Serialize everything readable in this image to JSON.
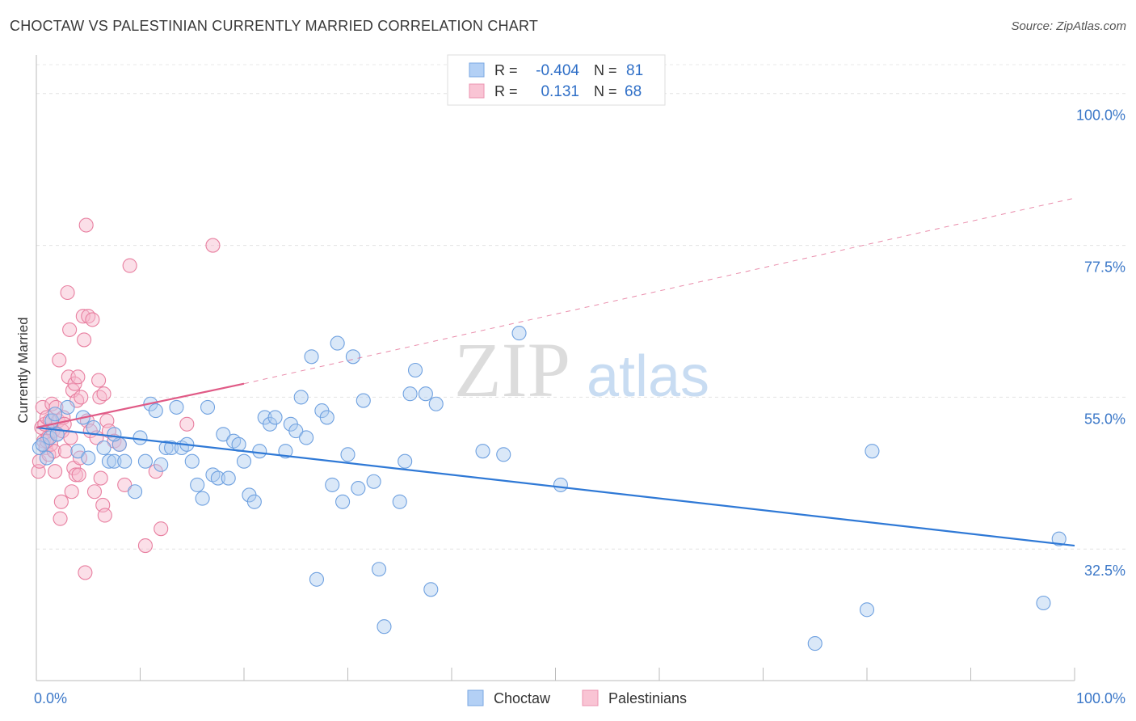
{
  "chart_data": {
    "type": "scatter",
    "title": "CHOCTAW VS PALESTINIAN CURRENTLY MARRIED CORRELATION CHART",
    "source": "Source: ZipAtlas.com",
    "watermark": {
      "zip": "ZIP",
      "atlas": "atlas"
    },
    "xlabel": "",
    "ylabel": "Currently Married",
    "xlim": [
      0,
      100
    ],
    "ylim": [
      13,
      105
    ],
    "x_tick_labels": [
      "0.0%",
      "100.0%"
    ],
    "y_ticks": [
      {
        "value": 32.5,
        "label": "32.5%"
      },
      {
        "value": 55.0,
        "label": "55.0%"
      },
      {
        "value": 77.5,
        "label": "77.5%"
      },
      {
        "value": 100.0,
        "label": "100.0%"
      }
    ],
    "legend_stats": [
      {
        "r_label": "R =",
        "r_value": "-0.404",
        "n_label": "N =",
        "n_value": "81"
      },
      {
        "r_label": "R =",
        "r_value": "0.131",
        "n_label": "N =",
        "n_value": "68"
      }
    ],
    "series": [
      {
        "name": "Choctaw",
        "color": "#6fa1e0",
        "fill": "#aecbf0",
        "trend": {
          "x0": 0,
          "y0": 50.5,
          "x1": 100,
          "y1": 33.0,
          "color": "#2f79d6"
        },
        "points": [
          [
            0.3,
            47.5
          ],
          [
            0.6,
            48.0
          ],
          [
            1.0,
            46.0
          ],
          [
            1.3,
            49.0
          ],
          [
            1.5,
            51.5
          ],
          [
            2.0,
            49.5
          ],
          [
            3.0,
            53.5
          ],
          [
            4.0,
            47.0
          ],
          [
            4.5,
            52.0
          ],
          [
            5.0,
            46.0
          ],
          [
            5.5,
            50.5
          ],
          [
            6.5,
            47.5
          ],
          [
            7.0,
            45.5
          ],
          [
            7.5,
            45.5
          ],
          [
            8.0,
            48.0
          ],
          [
            8.5,
            45.5
          ],
          [
            9.5,
            41.0
          ],
          [
            10.0,
            49.0
          ],
          [
            10.5,
            45.5
          ],
          [
            11.0,
            54.0
          ],
          [
            11.5,
            53.0
          ],
          [
            12.0,
            45.0
          ],
          [
            12.5,
            47.5
          ],
          [
            13.0,
            47.5
          ],
          [
            13.5,
            53.5
          ],
          [
            14.0,
            47.5
          ],
          [
            14.5,
            48.0
          ],
          [
            15.0,
            45.5
          ],
          [
            15.5,
            42.0
          ],
          [
            16.0,
            40.0
          ],
          [
            16.5,
            53.5
          ],
          [
            17.0,
            43.5
          ],
          [
            17.5,
            43.0
          ],
          [
            18.0,
            49.5
          ],
          [
            18.5,
            43.0
          ],
          [
            19.0,
            48.5
          ],
          [
            19.5,
            48.0
          ],
          [
            20.0,
            45.5
          ],
          [
            20.5,
            40.5
          ],
          [
            21.0,
            39.5
          ],
          [
            21.5,
            47.0
          ],
          [
            22.0,
            52.0
          ],
          [
            22.5,
            51.0
          ],
          [
            23.0,
            52.0
          ],
          [
            24.0,
            47.0
          ],
          [
            24.5,
            51.0
          ],
          [
            25.0,
            50.0
          ],
          [
            25.5,
            55.0
          ],
          [
            26.0,
            49.0
          ],
          [
            26.5,
            61.0
          ],
          [
            27.0,
            28.0
          ],
          [
            27.5,
            53.0
          ],
          [
            28.0,
            52.0
          ],
          [
            28.5,
            42.0
          ],
          [
            29.0,
            63.0
          ],
          [
            29.5,
            39.5
          ],
          [
            30.0,
            46.5
          ],
          [
            30.5,
            61.0
          ],
          [
            31.0,
            41.5
          ],
          [
            31.5,
            54.5
          ],
          [
            32.5,
            42.5
          ],
          [
            33.0,
            29.5
          ],
          [
            33.5,
            21.0
          ],
          [
            35.0,
            39.5
          ],
          [
            35.5,
            45.5
          ],
          [
            36.0,
            55.5
          ],
          [
            36.5,
            59.0
          ],
          [
            37.5,
            55.5
          ],
          [
            38.0,
            26.5
          ],
          [
            38.5,
            54.0
          ],
          [
            43.0,
            47.0
          ],
          [
            45.0,
            46.5
          ],
          [
            46.5,
            64.5
          ],
          [
            50.5,
            42.0
          ],
          [
            75.0,
            18.5
          ],
          [
            80.0,
            23.5
          ],
          [
            80.5,
            47.0
          ],
          [
            97.0,
            24.5
          ],
          [
            98.5,
            34.0
          ],
          [
            1.8,
            52.5
          ],
          [
            7.5,
            49.5
          ]
        ]
      },
      {
        "name": "Palestinians",
        "color": "#e87fa0",
        "fill": "#f7b8cb",
        "trend": {
          "x0": 0,
          "y0": 50.5,
          "x1": 20,
          "y1": 57.0,
          "dash_x1": 100,
          "dash_y1": 84.5,
          "color": "#e05a86"
        },
        "points": [
          [
            0.2,
            44.0
          ],
          [
            0.3,
            45.5
          ],
          [
            0.5,
            50.5
          ],
          [
            0.6,
            53.5
          ],
          [
            0.7,
            48.5
          ],
          [
            0.8,
            51.0
          ],
          [
            0.9,
            47.5
          ],
          [
            1.0,
            52.0
          ],
          [
            1.1,
            49.0
          ],
          [
            1.2,
            46.5
          ],
          [
            1.3,
            51.5
          ],
          [
            1.4,
            48.0
          ],
          [
            1.5,
            54.0
          ],
          [
            1.6,
            50.0
          ],
          [
            1.7,
            47.0
          ],
          [
            1.8,
            44.0
          ],
          [
            1.9,
            53.5
          ],
          [
            2.0,
            49.5
          ],
          [
            2.1,
            51.5
          ],
          [
            2.2,
            60.5
          ],
          [
            2.3,
            37.0
          ],
          [
            2.4,
            39.5
          ],
          [
            2.5,
            50.0
          ],
          [
            2.6,
            52.0
          ],
          [
            2.7,
            51.0
          ],
          [
            2.8,
            47.0
          ],
          [
            3.0,
            70.5
          ],
          [
            3.1,
            58.0
          ],
          [
            3.2,
            65.0
          ],
          [
            3.3,
            49.0
          ],
          [
            3.4,
            41.0
          ],
          [
            3.5,
            56.0
          ],
          [
            3.6,
            44.5
          ],
          [
            3.7,
            57.0
          ],
          [
            3.8,
            43.5
          ],
          [
            3.9,
            54.5
          ],
          [
            4.0,
            58.0
          ],
          [
            4.1,
            43.5
          ],
          [
            4.2,
            46.0
          ],
          [
            4.3,
            55.0
          ],
          [
            4.5,
            67.0
          ],
          [
            4.6,
            63.5
          ],
          [
            4.7,
            29.0
          ],
          [
            4.8,
            80.5
          ],
          [
            4.9,
            51.5
          ],
          [
            5.0,
            67.0
          ],
          [
            5.2,
            50.0
          ],
          [
            5.4,
            66.5
          ],
          [
            5.6,
            41.0
          ],
          [
            5.8,
            49.0
          ],
          [
            6.0,
            57.5
          ],
          [
            6.1,
            55.0
          ],
          [
            6.2,
            43.0
          ],
          [
            6.4,
            39.0
          ],
          [
            6.5,
            55.5
          ],
          [
            6.6,
            37.5
          ],
          [
            6.8,
            51.5
          ],
          [
            7.0,
            50.0
          ],
          [
            7.5,
            48.5
          ],
          [
            8.0,
            48.0
          ],
          [
            8.5,
            42.0
          ],
          [
            9.0,
            74.5
          ],
          [
            10.5,
            33.0
          ],
          [
            11.5,
            44.0
          ],
          [
            12.0,
            35.5
          ],
          [
            14.5,
            51.0
          ],
          [
            17.0,
            77.5
          ],
          [
            1.0,
            48.5
          ]
        ]
      }
    ]
  }
}
